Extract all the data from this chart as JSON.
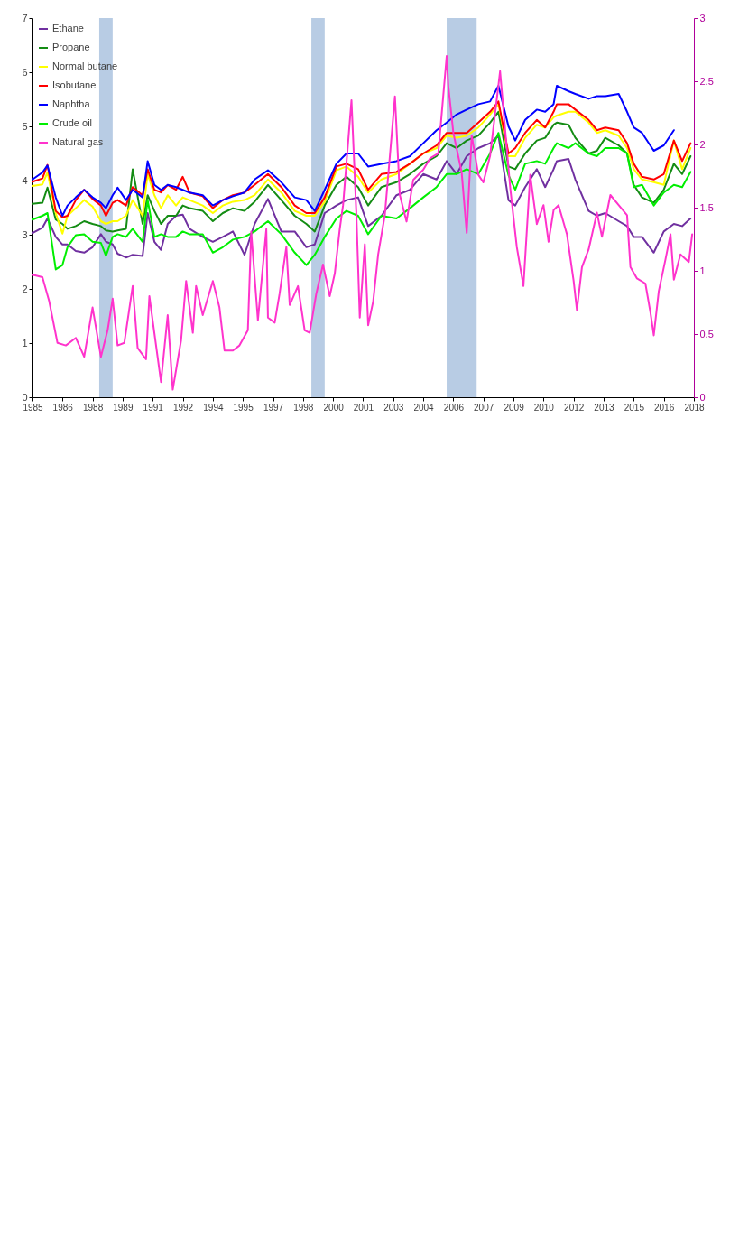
{
  "chart_data": {
    "type": "line",
    "x": [
      "1985-01",
      "1985-07",
      "1985-10",
      "1986-03",
      "1986-07",
      "1986-10",
      "1987-03",
      "1987-08",
      "1988-01",
      "1988-06",
      "1988-09",
      "1989-01",
      "1989-04",
      "1989-09",
      "1990-01",
      "1990-07",
      "1990-10",
      "1991-02",
      "1991-06",
      "1991-10",
      "1992-03",
      "1992-07",
      "1992-11",
      "1993-07",
      "1994-01",
      "1994-07",
      "1995-01",
      "1995-08",
      "1996-02",
      "1996-10",
      "1997-06",
      "1998-02",
      "1998-09",
      "1999-02",
      "1999-08",
      "2000-03",
      "2000-09",
      "2001-04",
      "2001-10",
      "2002-06",
      "2003-03",
      "2003-11",
      "2004-07",
      "2005-03",
      "2005-09",
      "2006-03",
      "2006-09",
      "2007-04",
      "2007-11",
      "2008-04",
      "2008-10",
      "2009-02",
      "2009-08",
      "2010-03",
      "2010-08",
      "2011-01",
      "2011-03",
      "2011-10",
      "2012-02",
      "2012-10",
      "2013-03",
      "2013-08",
      "2014-04",
      "2014-09",
      "2015-01",
      "2015-06",
      "2016-01",
      "2016-07",
      "2017-01",
      "2017-06",
      "2017-11"
    ],
    "series": [
      {
        "name": "Ethane",
        "color": "#7030a0",
        "values": [
          3.03,
          3.13,
          3.3,
          2.96,
          2.82,
          2.82,
          2.7,
          2.67,
          2.77,
          3.01,
          2.87,
          2.82,
          2.65,
          2.58,
          2.63,
          2.61,
          3.4,
          2.87,
          2.72,
          3.2,
          3.35,
          3.37,
          3.11,
          2.96,
          2.87,
          2.96,
          3.06,
          2.63,
          3.2,
          3.66,
          3.06,
          3.06,
          2.77,
          2.82,
          3.4,
          3.54,
          3.64,
          3.69,
          3.16,
          3.35,
          3.73,
          3.83,
          4.12,
          4.02,
          4.36,
          4.12,
          4.45,
          4.6,
          4.69,
          4.83,
          3.64,
          3.54,
          3.88,
          4.21,
          3.88,
          4.21,
          4.36,
          4.4,
          4.02,
          3.44,
          3.35,
          3.4,
          3.25,
          3.16,
          2.96,
          2.96,
          2.67,
          3.06,
          3.2,
          3.16,
          3.3
        ]
      },
      {
        "name": "Propane",
        "color": "#148c14",
        "values": [
          3.57,
          3.59,
          3.87,
          3.28,
          3.2,
          3.11,
          3.16,
          3.25,
          3.2,
          3.16,
          3.08,
          3.06,
          3.08,
          3.11,
          4.21,
          3.2,
          3.73,
          3.44,
          3.2,
          3.35,
          3.35,
          3.54,
          3.49,
          3.44,
          3.25,
          3.4,
          3.49,
          3.44,
          3.61,
          3.92,
          3.64,
          3.35,
          3.2,
          3.06,
          3.54,
          3.92,
          4.07,
          3.88,
          3.54,
          3.88,
          3.97,
          4.12,
          4.31,
          4.45,
          4.69,
          4.6,
          4.74,
          4.83,
          5.07,
          5.27,
          4.26,
          4.21,
          4.5,
          4.74,
          4.79,
          5.03,
          5.07,
          5.03,
          4.79,
          4.5,
          4.55,
          4.79,
          4.65,
          4.5,
          3.92,
          3.69,
          3.59,
          3.83,
          4.31,
          4.12,
          4.45
        ]
      },
      {
        "name": "Normal butane",
        "color": "#ffff00",
        "values": [
          3.9,
          3.93,
          4.15,
          3.4,
          3.02,
          3.35,
          3.49,
          3.64,
          3.52,
          3.25,
          3.2,
          3.25,
          3.25,
          3.35,
          3.64,
          3.35,
          4.12,
          3.73,
          3.49,
          3.73,
          3.54,
          3.69,
          3.64,
          3.54,
          3.4,
          3.54,
          3.61,
          3.64,
          3.73,
          4.02,
          3.78,
          3.44,
          3.35,
          3.35,
          3.61,
          4.19,
          4.26,
          4.07,
          3.78,
          4.02,
          4.12,
          4.31,
          4.5,
          4.6,
          4.83,
          4.79,
          4.83,
          4.98,
          5.22,
          5.41,
          4.45,
          4.45,
          4.79,
          5.03,
          4.98,
          5.17,
          5.2,
          5.27,
          5.27,
          5.07,
          4.88,
          4.93,
          4.83,
          4.6,
          4.21,
          4.02,
          3.97,
          3.92,
          4.74,
          4.21,
          4.6
        ]
      },
      {
        "name": "Isobutane",
        "color": "#ff0000",
        "values": [
          3.98,
          4.04,
          4.29,
          3.44,
          3.32,
          3.35,
          3.64,
          3.83,
          3.66,
          3.54,
          3.35,
          3.59,
          3.64,
          3.54,
          3.88,
          3.73,
          4.21,
          3.83,
          3.78,
          3.92,
          3.83,
          4.07,
          3.78,
          3.71,
          3.49,
          3.64,
          3.73,
          3.78,
          3.92,
          4.12,
          3.88,
          3.54,
          3.4,
          3.4,
          3.69,
          4.26,
          4.31,
          4.21,
          3.83,
          4.12,
          4.16,
          4.31,
          4.5,
          4.65,
          4.88,
          4.88,
          4.88,
          5.07,
          5.27,
          5.46,
          4.5,
          4.6,
          4.88,
          5.12,
          4.98,
          5.27,
          5.41,
          5.41,
          5.31,
          5.12,
          4.93,
          4.98,
          4.93,
          4.69,
          4.31,
          4.07,
          4.02,
          4.12,
          4.74,
          4.36,
          4.69
        ]
      },
      {
        "name": "Naphtha",
        "color": "#0000ff",
        "values": [
          4.02,
          4.15,
          4.28,
          3.69,
          3.35,
          3.54,
          3.69,
          3.83,
          3.69,
          3.59,
          3.49,
          3.73,
          3.87,
          3.64,
          3.83,
          3.69,
          4.36,
          3.92,
          3.83,
          3.92,
          3.88,
          3.83,
          3.78,
          3.73,
          3.54,
          3.64,
          3.71,
          3.78,
          4.02,
          4.19,
          3.97,
          3.69,
          3.64,
          3.44,
          3.83,
          4.31,
          4.5,
          4.5,
          4.26,
          4.31,
          4.36,
          4.45,
          4.69,
          4.93,
          5.07,
          5.22,
          5.31,
          5.41,
          5.46,
          5.75,
          5.0,
          4.74,
          5.12,
          5.31,
          5.27,
          5.41,
          5.75,
          5.65,
          5.6,
          5.51,
          5.56,
          5.56,
          5.6,
          5.27,
          4.98,
          4.88,
          4.55,
          4.65,
          4.93,
          null,
          null
        ]
      },
      {
        "name": "Crude oil",
        "color": "#00ee00",
        "values": [
          3.28,
          3.35,
          3.4,
          2.36,
          2.44,
          2.77,
          2.99,
          3.01,
          2.87,
          2.85,
          2.61,
          2.96,
          3.01,
          2.96,
          3.11,
          2.87,
          3.64,
          2.96,
          3.01,
          2.96,
          2.96,
          3.06,
          3.01,
          3.01,
          2.67,
          2.77,
          2.91,
          2.96,
          3.06,
          3.25,
          3.01,
          2.67,
          2.44,
          2.63,
          2.96,
          3.3,
          3.44,
          3.35,
          3.01,
          3.35,
          3.3,
          3.49,
          3.69,
          3.88,
          4.12,
          4.12,
          4.21,
          4.12,
          4.5,
          4.88,
          4.1,
          3.83,
          4.31,
          4.36,
          4.31,
          4.6,
          4.69,
          4.6,
          4.69,
          4.5,
          4.45,
          4.6,
          4.6,
          4.5,
          3.88,
          3.92,
          3.54,
          3.78,
          3.92,
          3.88,
          4.16
        ]
      },
      {
        "name": "Natural gas",
        "color": "#ff33cc",
        "axis": "y2",
        "x": [
          "1985-01",
          "1985-07",
          "1985-11",
          "1986-04",
          "1986-09",
          "1987-03",
          "1987-08",
          "1988-01",
          "1988-06",
          "1988-10",
          "1989-01",
          "1989-04",
          "1989-08",
          "1990-01",
          "1990-04",
          "1990-09",
          "1990-11",
          "1991-06",
          "1991-10",
          "1992-01",
          "1992-06",
          "1992-09",
          "1993-01",
          "1993-03",
          "1993-07",
          "1994-01",
          "1994-05",
          "1994-08",
          "1995-01",
          "1995-05",
          "1995-10",
          "1995-12",
          "1996-04",
          "1996-09",
          "1996-10",
          "1997-02",
          "1997-05",
          "1997-09",
          "1997-11",
          "1998-04",
          "1998-08",
          "1998-11",
          "1999-03",
          "1999-07",
          "1999-11",
          "2000-02",
          "2000-05",
          "2000-07",
          "2000-12",
          "2001-03",
          "2001-05",
          "2001-08",
          "2001-10",
          "2002-01",
          "2002-04",
          "2002-08",
          "2003-02",
          "2003-05",
          "2003-09",
          "2004-01",
          "2004-07",
          "2004-11",
          "2005-04",
          "2005-09",
          "2005-10",
          "2006-01",
          "2006-06",
          "2006-09",
          "2006-12",
          "2007-04",
          "2007-07",
          "2007-11",
          "2008-05",
          "2008-11",
          "2009-03",
          "2009-07",
          "2009-11",
          "2010-03",
          "2010-07",
          "2010-10",
          "2011-01",
          "2011-04",
          "2011-09",
          "2012-01",
          "2012-03",
          "2012-06",
          "2012-10",
          "2013-03",
          "2013-06",
          "2013-11",
          "2014-04",
          "2014-09",
          "2014-11",
          "2015-03",
          "2015-08",
          "2015-11",
          "2016-01",
          "2016-04",
          "2016-08",
          "2016-11",
          "2017-01",
          "2017-05",
          "2017-10",
          "2017-12"
        ],
        "values": [
          0.97,
          0.95,
          0.76,
          0.43,
          0.41,
          0.47,
          0.32,
          0.71,
          0.32,
          0.53,
          0.78,
          0.41,
          0.43,
          0.88,
          0.39,
          0.3,
          0.8,
          0.12,
          0.65,
          0.06,
          0.45,
          0.92,
          0.51,
          0.88,
          0.65,
          0.92,
          0.71,
          0.37,
          0.37,
          0.41,
          0.53,
          1.31,
          0.61,
          1.33,
          0.63,
          0.59,
          0.82,
          1.19,
          0.73,
          0.88,
          0.53,
          0.51,
          0.82,
          1.05,
          0.8,
          0.98,
          1.33,
          1.52,
          2.35,
          1.44,
          0.63,
          1.21,
          0.57,
          0.76,
          1.13,
          1.44,
          2.38,
          1.6,
          1.39,
          1.72,
          1.8,
          1.89,
          1.93,
          2.7,
          2.46,
          2.09,
          1.78,
          1.3,
          2.07,
          1.76,
          1.7,
          1.91,
          2.58,
          1.66,
          1.19,
          0.88,
          1.76,
          1.37,
          1.52,
          1.23,
          1.48,
          1.52,
          1.29,
          0.92,
          0.69,
          1.03,
          1.17,
          1.46,
          1.27,
          1.6,
          1.52,
          1.44,
          1.03,
          0.94,
          0.9,
          0.67,
          0.49,
          0.84,
          1.09,
          1.29,
          0.93,
          1.13,
          1.07,
          1.29
        ]
      }
    ],
    "xlim": [
      "1985-01",
      "2018-01"
    ],
    "xticks": [
      {
        "value": "1985-01",
        "label": "1985"
      },
      {
        "value": "1986-07",
        "label": "1986"
      },
      {
        "value": "1988-01",
        "label": "1988"
      },
      {
        "value": "1989-07",
        "label": "1989"
      },
      {
        "value": "1991-01",
        "label": "1991"
      },
      {
        "value": "1992-07",
        "label": "1992"
      },
      {
        "value": "1994-01",
        "label": "1994"
      },
      {
        "value": "1995-07",
        "label": "1995"
      },
      {
        "value": "1997-01",
        "label": "1997"
      },
      {
        "value": "1998-07",
        "label": "1998"
      },
      {
        "value": "2000-01",
        "label": "2000"
      },
      {
        "value": "2001-07",
        "label": "2001"
      },
      {
        "value": "2003-01",
        "label": "2003"
      },
      {
        "value": "2004-07",
        "label": "2004"
      },
      {
        "value": "2006-01",
        "label": "2006"
      },
      {
        "value": "2007-07",
        "label": "2007"
      },
      {
        "value": "2009-01",
        "label": "2009"
      },
      {
        "value": "2010-07",
        "label": "2010"
      },
      {
        "value": "2012-01",
        "label": "2012"
      },
      {
        "value": "2013-07",
        "label": "2013"
      },
      {
        "value": "2015-01",
        "label": "2015"
      },
      {
        "value": "2016-07",
        "label": "2016"
      },
      {
        "value": "2018-01",
        "label": "2018"
      }
    ],
    "ylim": [
      0,
      7
    ],
    "yticks": [
      0,
      1,
      2,
      3,
      4,
      5,
      6,
      7
    ],
    "y2lim": [
      0,
      3
    ],
    "y2ticks": [
      0,
      0.5,
      1,
      1.5,
      2,
      2.5,
      3
    ],
    "bands": [
      {
        "axis": "x",
        "from": "1988-05",
        "to": "1989-01",
        "color": "#b8cce4"
      },
      {
        "axis": "x",
        "from": "1998-12",
        "to": "1999-08",
        "color": "#b8cce4"
      },
      {
        "axis": "x",
        "from": "2005-09",
        "to": "2007-03",
        "color": "#b8cce4"
      }
    ],
    "legend": "top left"
  }
}
